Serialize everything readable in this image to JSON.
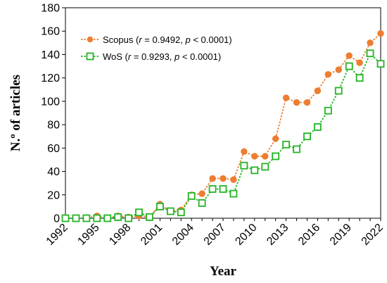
{
  "chart_data": {
    "type": "line",
    "xlabel": "Year",
    "ylabel": "N.º of articles",
    "xlim": [
      1992,
      2022
    ],
    "ylim": [
      0,
      180
    ],
    "x_ticks": [
      1992,
      1995,
      1998,
      2001,
      2004,
      2007,
      2010,
      2013,
      2016,
      2019,
      2022
    ],
    "y_ticks": [
      0,
      20,
      40,
      60,
      80,
      100,
      120,
      140,
      160,
      180
    ],
    "grid": false,
    "legend_position": "top-left",
    "x": [
      1992,
      1993,
      1994,
      1995,
      1996,
      1997,
      1998,
      1999,
      2000,
      2001,
      2002,
      2003,
      2004,
      2005,
      2006,
      2007,
      2008,
      2009,
      2010,
      2011,
      2012,
      2013,
      2014,
      2015,
      2016,
      2017,
      2018,
      2019,
      2020,
      2021,
      2022
    ],
    "series": [
      {
        "name": "Scopus",
        "r_label": "r",
        "r_value": " = 0.9492, ",
        "p_label": "p",
        "p_value": " < 0.0001",
        "color": "#ED7D31",
        "marker": "circle",
        "values": [
          0,
          0,
          0,
          2,
          0,
          2,
          1,
          2,
          1,
          12,
          6,
          7,
          20,
          21,
          34,
          34,
          33,
          57,
          53,
          53,
          68,
          103,
          99,
          99,
          109,
          123,
          127,
          139,
          133,
          150,
          158
        ]
      },
      {
        "name": "WoS",
        "r_label": "r",
        "r_value": " = 0.9293, ",
        "p_label": "p",
        "p_value": " < 0.0001",
        "color": "#22B522",
        "marker": "square",
        "values": [
          0,
          0,
          0,
          0,
          0,
          1,
          0,
          5,
          1,
          10,
          6,
          5,
          19,
          13,
          25,
          25,
          21,
          45,
          41,
          44,
          53,
          63,
          59,
          70,
          78,
          92,
          109,
          130,
          120,
          141,
          132
        ]
      }
    ]
  }
}
